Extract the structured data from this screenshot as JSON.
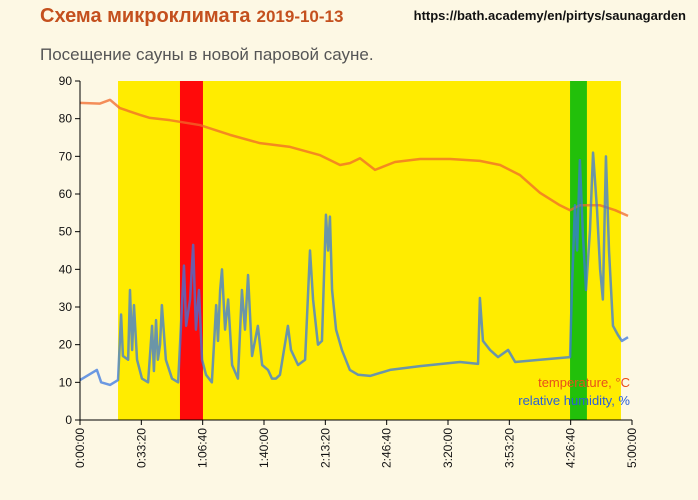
{
  "chart_data": {
    "type": "line",
    "title": "Схема микроклимата",
    "date": "2019-10-13",
    "url": "https://bath.academy/en/pirtys/saunagarden",
    "subtitle": "Посещение сауны в новой паровой сауне.",
    "xlim": [
      0,
      18000
    ],
    "xticks": [
      {
        "value": 0,
        "label": "0:00:00"
      },
      {
        "value": 2000,
        "label": "0:33:20"
      },
      {
        "value": 4000,
        "label": "1:06:40"
      },
      {
        "value": 6000,
        "label": "1:40:00"
      },
      {
        "value": 8000,
        "label": "2:13:20"
      },
      {
        "value": 10000,
        "label": "2:46:40"
      },
      {
        "value": 12000,
        "label": "3:20:00"
      },
      {
        "value": 14000,
        "label": "3:53:20"
      },
      {
        "value": 16000,
        "label": "4:26:40"
      },
      {
        "value": 18000,
        "label": "5:00:00"
      }
    ],
    "ylim": [
      0,
      90
    ],
    "yticks": [
      0,
      10,
      20,
      30,
      40,
      50,
      60,
      70,
      80,
      90
    ],
    "grid": false,
    "legend": "lower right",
    "regions": [
      {
        "start": 1240,
        "end": 17640,
        "color": "#ffec00"
      },
      {
        "start": 3260,
        "end": 4010,
        "color": "#ff0a0a"
      },
      {
        "start": 15980,
        "end": 16530,
        "color": "#22c00a"
      }
    ],
    "series": [
      {
        "name": "temperature, °C",
        "color": "#f06a2a",
        "x": [
          0,
          650,
          980,
          1300,
          1960,
          2280,
          2930,
          3910,
          4890,
          5870,
          6850,
          7830,
          8480,
          8800,
          9130,
          9620,
          10270,
          11090,
          12070,
          13040,
          13700,
          14350,
          15000,
          15650,
          15980,
          16300,
          16960,
          17450,
          17870
        ],
        "values": [
          84.2,
          84,
          85,
          82.8,
          81,
          80.2,
          79.6,
          78.3,
          75.7,
          73.5,
          72.5,
          70.3,
          67.7,
          68.2,
          69.5,
          66.4,
          68.5,
          69.3,
          69.3,
          68.8,
          67.7,
          65,
          60.3,
          57,
          55.7,
          57,
          57,
          55.7,
          54.2
        ]
      },
      {
        "name": "relative humidity, %",
        "color": "#3a78e0",
        "x": [
          0,
          550,
          690,
          980,
          1240,
          1340,
          1400,
          1570,
          1630,
          1700,
          1760,
          1860,
          2020,
          2220,
          2350,
          2410,
          2480,
          2540,
          2610,
          2670,
          2800,
          3000,
          3200,
          3390,
          3460,
          3590,
          3690,
          3780,
          3880,
          3980,
          4110,
          4300,
          4440,
          4500,
          4570,
          4630,
          4730,
          4830,
          4960,
          5150,
          5280,
          5380,
          5480,
          5610,
          5800,
          5940,
          6130,
          6260,
          6390,
          6520,
          6780,
          6880,
          7110,
          7340,
          7500,
          7600,
          7760,
          7890,
          8020,
          8090,
          8150,
          8220,
          8350,
          8540,
          8800,
          9070,
          9460,
          10110,
          11090,
          12390,
          12980,
          13040,
          13140,
          13370,
          13630,
          13960,
          14190,
          15000,
          15980,
          16040,
          16140,
          16210,
          16300,
          16400,
          16500,
          16630,
          16730,
          16860,
          16960,
          17050,
          17150,
          17250,
          17380,
          17540,
          17670,
          17870
        ],
        "values": [
          10.6,
          13.3,
          10,
          9.3,
          10.6,
          28,
          17,
          16,
          34.5,
          18.6,
          30.5,
          16,
          11,
          10,
          25,
          13,
          26.5,
          16,
          20,
          30.5,
          16,
          11,
          10,
          41,
          25,
          32,
          46.5,
          24,
          34.5,
          16,
          12,
          10,
          30.5,
          21,
          34.5,
          40,
          24,
          32,
          14.6,
          11,
          34.5,
          24,
          38.5,
          17,
          25,
          14.6,
          13.3,
          11,
          11,
          12,
          25,
          18.6,
          14.6,
          16,
          45,
          32,
          20,
          21,
          54.5,
          45,
          54,
          34.5,
          24,
          18.6,
          13.3,
          12,
          11.7,
          13.3,
          14.3,
          15.4,
          14.9,
          32.4,
          21,
          18.6,
          16.7,
          18.6,
          15.4,
          16,
          16.7,
          34.5,
          57,
          45,
          69,
          49,
          34.5,
          50.4,
          71,
          55.8,
          40,
          32,
          70,
          45,
          25,
          22.6,
          21,
          22
        ]
      }
    ]
  }
}
